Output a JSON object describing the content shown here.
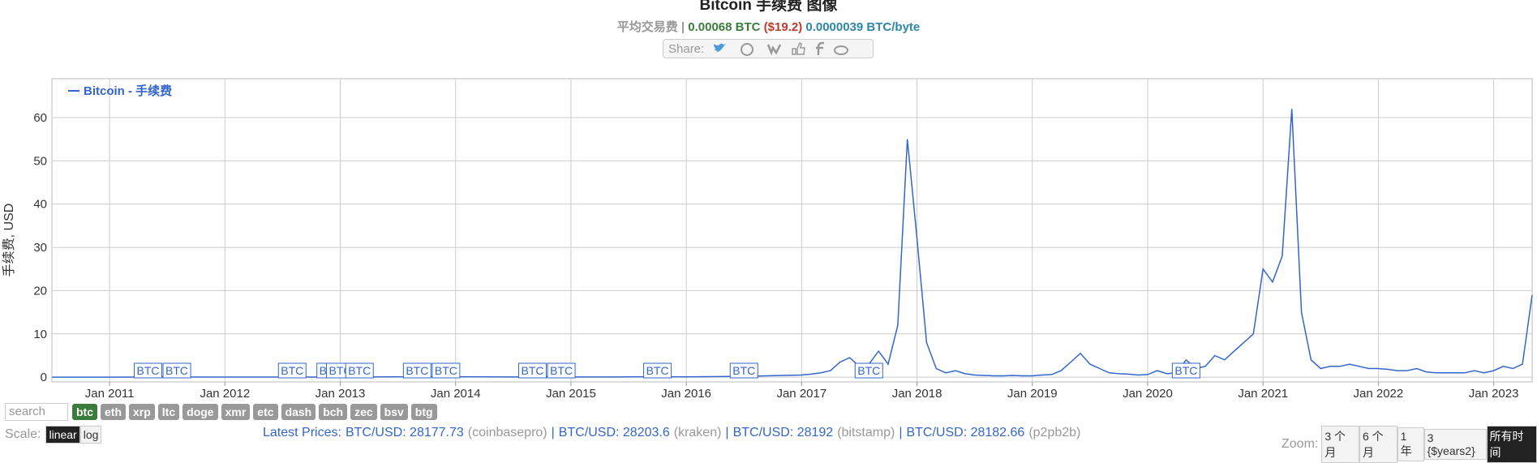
{
  "header": {
    "title": "Bitcoin 手续费 图像",
    "subtitle": {
      "label": "平均交易费 |",
      "btc": "0.00068 BTC",
      "usd": "($19.2)",
      "per_byte": "0.0000039 BTC/byte"
    },
    "share": "Share:"
  },
  "chart_data": {
    "type": "line",
    "y_label": "手续费, USD",
    "x": [
      "2010-07",
      "2011-01",
      "2011-07",
      "2012-01",
      "2012-07",
      "2013-01",
      "2013-07",
      "2014-01",
      "2014-07",
      "2015-01",
      "2015-07",
      "2016-01",
      "2016-07",
      "2017-01",
      "2017-02",
      "2017-03",
      "2017-04",
      "2017-05",
      "2017-06",
      "2017-07",
      "2017-08",
      "2017-09",
      "2017-10",
      "2017-11",
      "2017-12",
      "2018-01",
      "2018-02",
      "2018-03",
      "2018-04",
      "2018-05",
      "2018-06",
      "2018-07",
      "2018-08",
      "2018-09",
      "2018-10",
      "2018-11",
      "2018-12",
      "2019-01",
      "2019-02",
      "2019-03",
      "2019-04",
      "2019-05",
      "2019-06",
      "2019-07",
      "2019-08",
      "2019-09",
      "2019-10",
      "2019-11",
      "2019-12",
      "2020-01",
      "2020-02",
      "2020-03",
      "2020-04",
      "2020-05",
      "2020-06",
      "2020-07",
      "2020-08",
      "2020-09",
      "2020-10",
      "2020-11",
      "2020-12",
      "2021-01",
      "2021-02",
      "2021-03",
      "2021-04",
      "2021-05",
      "2021-06",
      "2021-07",
      "2021-08",
      "2021-09",
      "2021-10",
      "2021-11",
      "2021-12",
      "2022-01",
      "2022-02",
      "2022-03",
      "2022-04",
      "2022-05",
      "2022-06",
      "2022-07",
      "2022-08",
      "2022-09",
      "2022-10",
      "2022-11",
      "2022-12",
      "2023-01",
      "2023-02",
      "2023-03",
      "2023-04",
      "2023-05"
    ],
    "series": [
      {
        "name": "Bitcoin - 手续费",
        "color": "#3366cc",
        "values": [
          0,
          0.01,
          0.05,
          0.02,
          0.03,
          0.05,
          0.08,
          0.1,
          0.05,
          0.04,
          0.06,
          0.08,
          0.2,
          0.5,
          0.7,
          1.0,
          1.5,
          3.5,
          4.5,
          2.5,
          3,
          6,
          3,
          12,
          55,
          32,
          8,
          2,
          1,
          1.5,
          0.8,
          0.5,
          0.4,
          0.3,
          0.3,
          0.4,
          0.3,
          0.3,
          0.5,
          0.6,
          1.5,
          3.5,
          5.5,
          3,
          2,
          1,
          0.8,
          0.7,
          0.5,
          0.6,
          1.5,
          0.8,
          1,
          4,
          2,
          2.5,
          5,
          4,
          6,
          8,
          10,
          25,
          22,
          28,
          62,
          15,
          4,
          2,
          2.5,
          2.5,
          3,
          2.5,
          2,
          2,
          1.8,
          1.5,
          1.5,
          2,
          1.2,
          1,
          1,
          1,
          1,
          1.5,
          1,
          1.5,
          2.5,
          2,
          3,
          19
        ]
      }
    ],
    "xlim": [
      "2010-07",
      "2023-05"
    ],
    "xticks": [
      {
        "value": "2011-01",
        "label": "Jan 2011"
      },
      {
        "value": "2012-01",
        "label": "Jan 2012"
      },
      {
        "value": "2013-01",
        "label": "Jan 2013"
      },
      {
        "value": "2014-01",
        "label": "Jan 2014"
      },
      {
        "value": "2015-01",
        "label": "Jan 2015"
      },
      {
        "value": "2016-01",
        "label": "Jan 2016"
      },
      {
        "value": "2017-01",
        "label": "Jan 2017"
      },
      {
        "value": "2018-01",
        "label": "Jan 2018"
      },
      {
        "value": "2019-01",
        "label": "Jan 2019"
      },
      {
        "value": "2020-01",
        "label": "Jan 2020"
      },
      {
        "value": "2021-01",
        "label": "Jan 2021"
      },
      {
        "value": "2022-01",
        "label": "Jan 2022"
      },
      {
        "value": "2023-01",
        "label": "Jan 2023"
      }
    ],
    "ylim": [
      -1.1,
      69
    ],
    "yticks": [
      0,
      10,
      20,
      30,
      40,
      50,
      60
    ],
    "grid": true,
    "legend": "top-left",
    "flags": [
      {
        "x": "2011-05",
        "label": "BTC"
      },
      {
        "x": "2011-08",
        "label": "BTC"
      },
      {
        "x": "2012-08",
        "label": "BTC"
      },
      {
        "x": "2012-12",
        "label": "BTC"
      },
      {
        "x": "2013-01",
        "label": "BTC"
      },
      {
        "x": "2013-03",
        "label": "BTC"
      },
      {
        "x": "2013-09",
        "label": "BTC"
      },
      {
        "x": "2013-12",
        "label": "BTC"
      },
      {
        "x": "2014-09",
        "label": "BTC"
      },
      {
        "x": "2014-12",
        "label": "BTC"
      },
      {
        "x": "2015-10",
        "label": "BTC"
      },
      {
        "x": "2016-07",
        "label": "BTC"
      },
      {
        "x": "2017-08",
        "label": "BTC"
      },
      {
        "x": "2020-05",
        "label": "BTC"
      }
    ]
  },
  "controls": {
    "search": "search",
    "coins": [
      "btc",
      "eth",
      "xrp",
      "ltc",
      "doge",
      "xmr",
      "etc",
      "dash",
      "bch",
      "zec",
      "bsv",
      "btg"
    ],
    "scale_label": "Scale:",
    "scales": [
      "linear",
      "log"
    ],
    "prices_label": "Latest Prices:",
    "separator": "|",
    "prices": [
      {
        "pair": "BTC/USD: 28177.73",
        "source": "(coinbasepro)"
      },
      {
        "pair": "BTC/USD: 28203.6",
        "source": "(kraken)"
      },
      {
        "pair": "BTC/USD: 28192",
        "source": "(bitstamp)"
      },
      {
        "pair": "BTC/USD: 28182.66",
        "source": "(p2pb2b)"
      }
    ],
    "zoom_label": "Zoom:",
    "zooms": [
      "3 个月",
      "6 个月",
      "1 年",
      "3 {$years2}",
      "所有时间"
    ]
  }
}
